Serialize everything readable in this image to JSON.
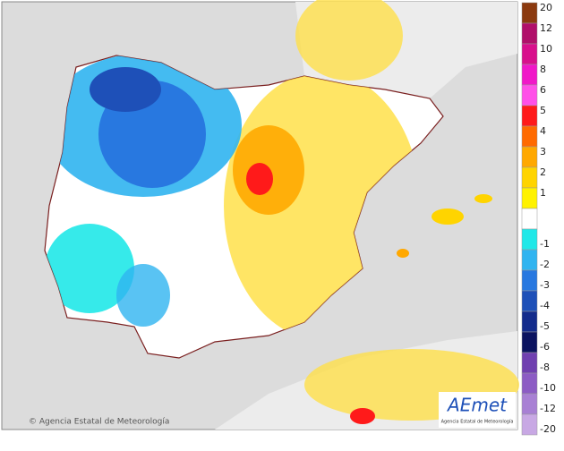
{
  "legend": {
    "items": [
      {
        "label": 20,
        "color": "#8b3a0f"
      },
      {
        "label": 12,
        "color": "#b0106a"
      },
      {
        "label": 10,
        "color": "#d8108c"
      },
      {
        "label": 8,
        "color": "#f018c8"
      },
      {
        "label": 6,
        "color": "#ff50e8"
      },
      {
        "label": 5,
        "color": "#ff1a1a"
      },
      {
        "label": 4,
        "color": "#ff6a00"
      },
      {
        "label": 3,
        "color": "#ffa800"
      },
      {
        "label": 2,
        "color": "#ffd400"
      },
      {
        "label": 1,
        "color": "#fff200"
      },
      {
        "label": -1,
        "color": "#20e8e8"
      },
      {
        "label": -2,
        "color": "#30b4f0"
      },
      {
        "label": -3,
        "color": "#2878e0"
      },
      {
        "label": -4,
        "color": "#1e50b8"
      },
      {
        "label": -5,
        "color": "#142c8c"
      },
      {
        "label": -6,
        "color": "#0c1460"
      },
      {
        "label": -8,
        "color": "#7040b0"
      },
      {
        "label": -10,
        "color": "#8c5cc4"
      },
      {
        "label": -12,
        "color": "#a880d4"
      },
      {
        "label": -20,
        "color": "#c8a8e4"
      }
    ]
  },
  "credit": "© Agencia Estatal de Meteorología",
  "logo": {
    "name": "AEmet",
    "subtitle": "Agencia Estatal de Meteorología"
  }
}
